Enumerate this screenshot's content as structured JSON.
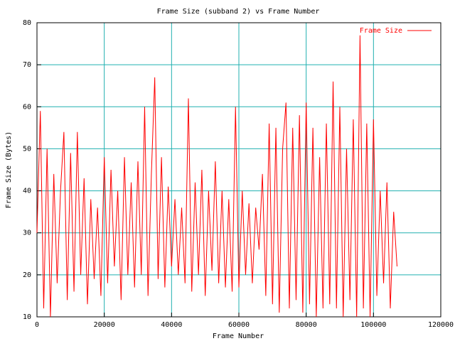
{
  "chart_data": {
    "type": "line",
    "title": "Frame Size (subband 2) vs Frame Number",
    "x_label": "Frame Number",
    "y_label": "Frame Size (Bytes)",
    "x": [
      0,
      1000,
      2000,
      3000,
      4000,
      5000,
      6000,
      7000,
      8000,
      9000,
      10000,
      11000,
      12000,
      13000,
      14000,
      15000,
      16000,
      17000,
      18000,
      19000,
      20000,
      21000,
      22000,
      23000,
      24000,
      25000,
      26000,
      27000,
      28000,
      29000,
      30000,
      31000,
      32000,
      33000,
      34000,
      35000,
      36000,
      37000,
      38000,
      39000,
      40000,
      41000,
      42000,
      43000,
      44000,
      45000,
      46000,
      47000,
      48000,
      49000,
      50000,
      51000,
      52000,
      53000,
      54000,
      55000,
      56000,
      57000,
      58000,
      59000,
      60000,
      61000,
      62000,
      63000,
      64000,
      65000,
      66000,
      67000,
      68000,
      69000,
      70000,
      71000,
      72000,
      73000,
      74000,
      75000,
      76000,
      77000,
      78000,
      79000,
      80000,
      81000,
      82000,
      83000,
      84000,
      85000,
      86000,
      87000,
      88000,
      89000,
      90000,
      91000,
      92000,
      93000,
      94000,
      95000,
      96000,
      97000,
      98000,
      99000,
      100000,
      101000,
      102000,
      103000,
      104000,
      105000,
      106000,
      107000
    ],
    "series": [
      {
        "name": "Frame Size",
        "color": "#ff0000",
        "values": [
          30,
          59,
          12,
          50,
          10,
          44,
          18,
          40,
          54,
          14,
          49,
          16,
          54,
          20,
          43,
          13,
          38,
          19,
          36,
          15,
          48,
          18,
          45,
          22,
          40,
          14,
          48,
          20,
          42,
          17,
          47,
          20,
          60,
          15,
          44,
          67,
          19,
          48,
          17,
          41,
          22,
          38,
          20,
          36,
          18,
          62,
          16,
          42,
          20,
          45,
          15,
          40,
          21,
          47,
          18,
          40,
          17,
          38,
          16,
          60,
          17,
          40,
          20,
          37,
          18,
          36,
          26,
          44,
          15,
          56,
          13,
          55,
          11,
          50,
          61,
          12,
          55,
          14,
          58,
          11,
          61,
          13,
          55,
          10,
          48,
          12,
          56,
          13,
          66,
          12,
          60,
          10,
          50,
          14,
          57,
          10,
          77,
          12,
          56,
          10,
          57,
          15,
          40,
          18,
          42,
          12,
          35,
          22
        ]
      }
    ],
    "xlim": [
      0,
      120000
    ],
    "ylim": [
      10,
      80
    ],
    "xticks": [
      0,
      20000,
      40000,
      60000,
      80000,
      100000,
      120000
    ],
    "yticks": [
      10,
      20,
      30,
      40,
      50,
      60,
      70,
      80
    ],
    "grid": true,
    "grid_color": "#20b0b0",
    "legend": "upper-right"
  }
}
